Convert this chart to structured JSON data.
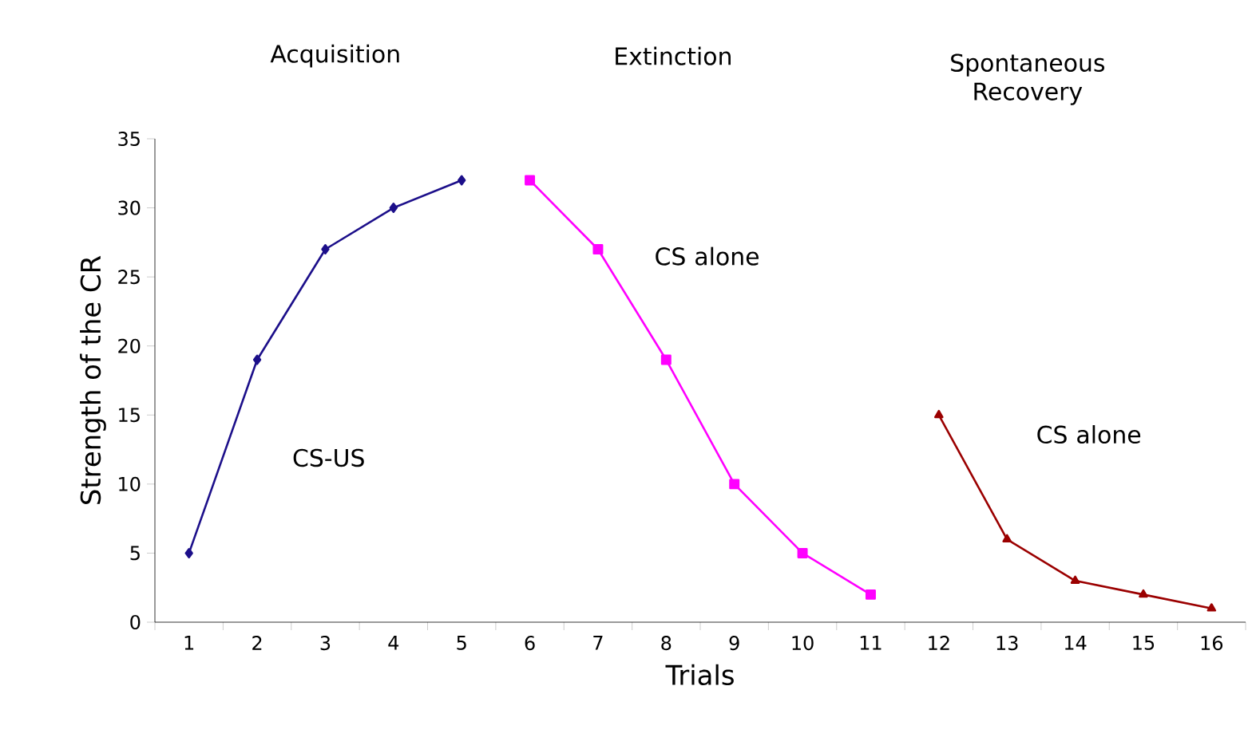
{
  "chart_data": {
    "type": "line",
    "xlabel": "Trials",
    "ylabel": "Strength of the CR",
    "categories": [
      "1",
      "2",
      "3",
      "4",
      "5",
      "6",
      "7",
      "8",
      "9",
      "10",
      "11",
      "12",
      "13",
      "14",
      "15",
      "16"
    ],
    "ylim": [
      0,
      35
    ],
    "yticks": [
      0,
      5,
      10,
      15,
      20,
      25,
      30,
      35
    ],
    "grid": false,
    "line_style": "solid",
    "series": [
      {
        "color": "#1c0f8a",
        "marker": "diamond",
        "values": [
          5,
          19,
          27,
          30,
          32,
          null,
          null,
          null,
          null,
          null,
          null,
          null,
          null,
          null,
          null,
          null
        ]
      },
      {
        "color": "#ff00ff",
        "marker": "square",
        "values": [
          null,
          null,
          null,
          null,
          null,
          32,
          27,
          19,
          10,
          5,
          2,
          null,
          null,
          null,
          null,
          null
        ]
      },
      {
        "color": "#9b0000",
        "marker": "triangle",
        "values": [
          null,
          null,
          null,
          null,
          null,
          null,
          null,
          null,
          null,
          null,
          null,
          15,
          6,
          3,
          2,
          1
        ]
      }
    ],
    "annotations": [
      "Acquisition",
      "Extinction",
      "Spontaneous Recovery",
      "CS-US",
      "CS alone",
      "CS alone"
    ]
  }
}
